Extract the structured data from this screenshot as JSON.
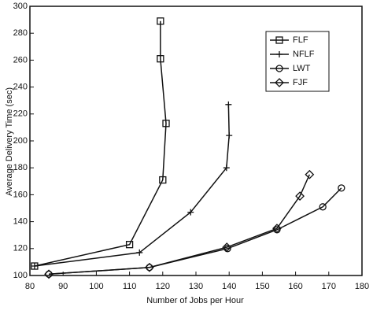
{
  "chart_data": {
    "type": "line",
    "xlabel": "Number of Jobs per Hour",
    "ylabel": "Average Delivery Time (sec)",
    "xlim": [
      80,
      180
    ],
    "xticks": [
      80,
      90,
      100,
      110,
      120,
      130,
      140,
      150,
      160,
      170,
      180
    ],
    "ylim": [
      100,
      300
    ],
    "yticks": [
      100,
      120,
      140,
      160,
      180,
      200,
      220,
      240,
      260,
      280,
      300
    ],
    "legend": "top-right",
    "series": [
      {
        "name": "FLF",
        "color": "#111111",
        "marker": "square",
        "x": [
          81.4,
          110,
          120,
          121,
          119.3,
          119.3
        ],
        "values": [
          107,
          123,
          171,
          213,
          261,
          289
        ]
      },
      {
        "name": "NFLF",
        "color": "#111111",
        "marker": "plus",
        "x": [
          81.4,
          113,
          128.4,
          139.2,
          140,
          139.8
        ],
        "values": [
          107,
          117,
          147,
          180,
          204,
          227
        ]
      },
      {
        "name": "LWT",
        "color": "#111111",
        "marker": "circle",
        "x": [
          85.7,
          116,
          139.5,
          154.4,
          168.2,
          173.8
        ],
        "values": [
          101,
          106,
          120,
          134,
          151,
          165
        ]
      },
      {
        "name": "FJF",
        "color": "#111111",
        "marker": "diamond",
        "x": [
          85.7,
          116,
          139.3,
          154.4,
          161.3,
          164.2
        ],
        "values": [
          101,
          106,
          121,
          135,
          159,
          175
        ]
      }
    ]
  }
}
